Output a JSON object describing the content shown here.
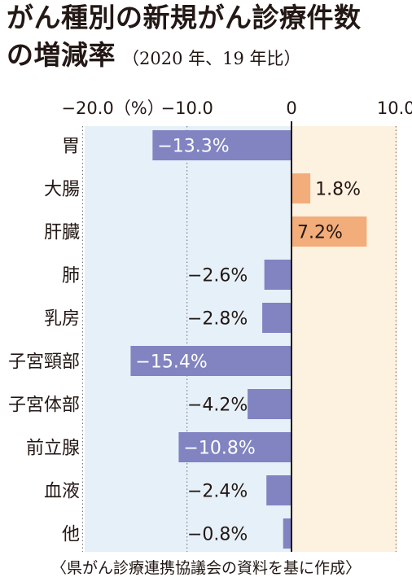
{
  "title": {
    "line1": "がん種別の新規がん診療件数",
    "line2": "の増減率",
    "subtitle": "（2020 年、19 年比）"
  },
  "source": "〈県がん診療連携協議会の資料を基に作成〉",
  "colors": {
    "negative_bar": "#8184c1",
    "positive_bar": "#f2ad7a",
    "negative_bg": "#e6f0f8",
    "positive_bg": "#fdf1e0",
    "text": "#231815"
  },
  "chart_data": {
    "type": "bar",
    "orientation": "horizontal",
    "categories": [
      "胃",
      "大腸",
      "肝臓",
      "肺",
      "乳房",
      "子宮頸部",
      "子宮体部",
      "前立腺",
      "血液",
      "他"
    ],
    "values": [
      -13.3,
      1.8,
      7.2,
      -2.6,
      -2.8,
      -15.4,
      -4.2,
      -10.8,
      -2.4,
      -0.8
    ],
    "value_labels": [
      "−13.3%",
      "1.8%",
      "7.2%",
      "−2.6%",
      "−2.8%",
      "−15.4%",
      "−4.2%",
      "−10.8%",
      "−2.4%",
      "−0.8%"
    ],
    "xlim": [
      -20,
      10
    ],
    "ticks": [
      {
        "value": -20,
        "label": "−20.0（%）"
      },
      {
        "value": -10,
        "label": "−10.0"
      },
      {
        "value": 0,
        "label": "0"
      },
      {
        "value": 10,
        "label": "10.0"
      }
    ],
    "grid": true
  }
}
